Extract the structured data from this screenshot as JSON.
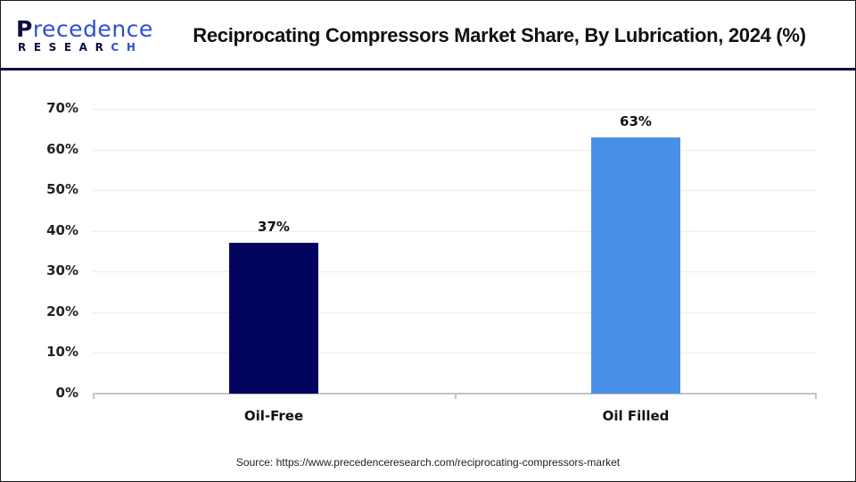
{
  "header": {
    "logo_top": "recedence",
    "logo_p": "P",
    "logo_bottom_main": "RESEAR",
    "logo_bottom_accent": "CH",
    "title": "Reciprocating Compressors Market Share, By Lubrication, 2024 (%)"
  },
  "footer": {
    "source": "Source: https://www.precedenceresearch.com/reciprocating-compressors-market"
  },
  "colors": {
    "oil_free": "#03045e",
    "oil_filled": "#4a90e8",
    "brand_navy": "#0b0c3e",
    "brand_blue": "#2f4fd6"
  },
  "chart_data": {
    "type": "bar",
    "title": "Reciprocating Compressors Market Share, By Lubrication, 2024 (%)",
    "categories": [
      "Oil-Free",
      "Oil Filled"
    ],
    "values": [
      37,
      63
    ],
    "data_labels": [
      "37%",
      "63%"
    ],
    "bar_colors": [
      "#03045e",
      "#4a90e8"
    ],
    "xlabel": "",
    "ylabel": "",
    "ylim": [
      0,
      70
    ],
    "yticks": [
      "0%",
      "10%",
      "20%",
      "30%",
      "40%",
      "50%",
      "60%",
      "70%"
    ],
    "grid": true,
    "legend": "none",
    "source": "Source: https://www.precedenceresearch.com/reciprocating-compressors-market"
  }
}
